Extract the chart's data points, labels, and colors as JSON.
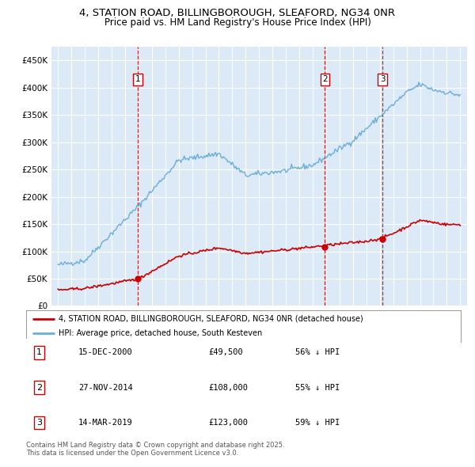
{
  "title": "4, STATION ROAD, BILLINGBOROUGH, SLEAFORD, NG34 0NR",
  "subtitle": "Price paid vs. HM Land Registry's House Price Index (HPI)",
  "ylim": [
    0,
    475000
  ],
  "yticks": [
    0,
    50000,
    100000,
    150000,
    200000,
    250000,
    300000,
    350000,
    400000,
    450000
  ],
  "ytick_labels": [
    "£0",
    "£50K",
    "£100K",
    "£150K",
    "£200K",
    "£250K",
    "£300K",
    "£350K",
    "£400K",
    "£450K"
  ],
  "xlim_start": 1994.5,
  "xlim_end": 2025.5,
  "bg_color": "#dce9f7",
  "grid_color": "#ffffff",
  "sales": [
    {
      "label": "1",
      "year": 2000.96,
      "price": 49500,
      "date": "15-DEC-2000"
    },
    {
      "label": "2",
      "year": 2014.91,
      "price": 108000,
      "date": "27-NOV-2014"
    },
    {
      "label": "3",
      "year": 2019.2,
      "price": 123000,
      "date": "14-MAR-2019"
    }
  ],
  "legend_line1": "4, STATION ROAD, BILLINGBOROUGH, SLEAFORD, NG34 0NR (detached house)",
  "legend_line2": "HPI: Average price, detached house, South Kesteven",
  "table_rows": [
    [
      "1",
      "15-DEC-2000",
      "£49,500",
      "56% ↓ HPI"
    ],
    [
      "2",
      "27-NOV-2014",
      "£108,000",
      "55% ↓ HPI"
    ],
    [
      "3",
      "14-MAR-2019",
      "£123,000",
      "59% ↓ HPI"
    ]
  ],
  "footnote": "Contains HM Land Registry data © Crown copyright and database right 2025.\nThis data is licensed under the Open Government Licence v3.0.",
  "red_color": "#cc0000",
  "blue_color": "#6baed6",
  "title_fontsize": 9.5,
  "subtitle_fontsize": 8.5
}
